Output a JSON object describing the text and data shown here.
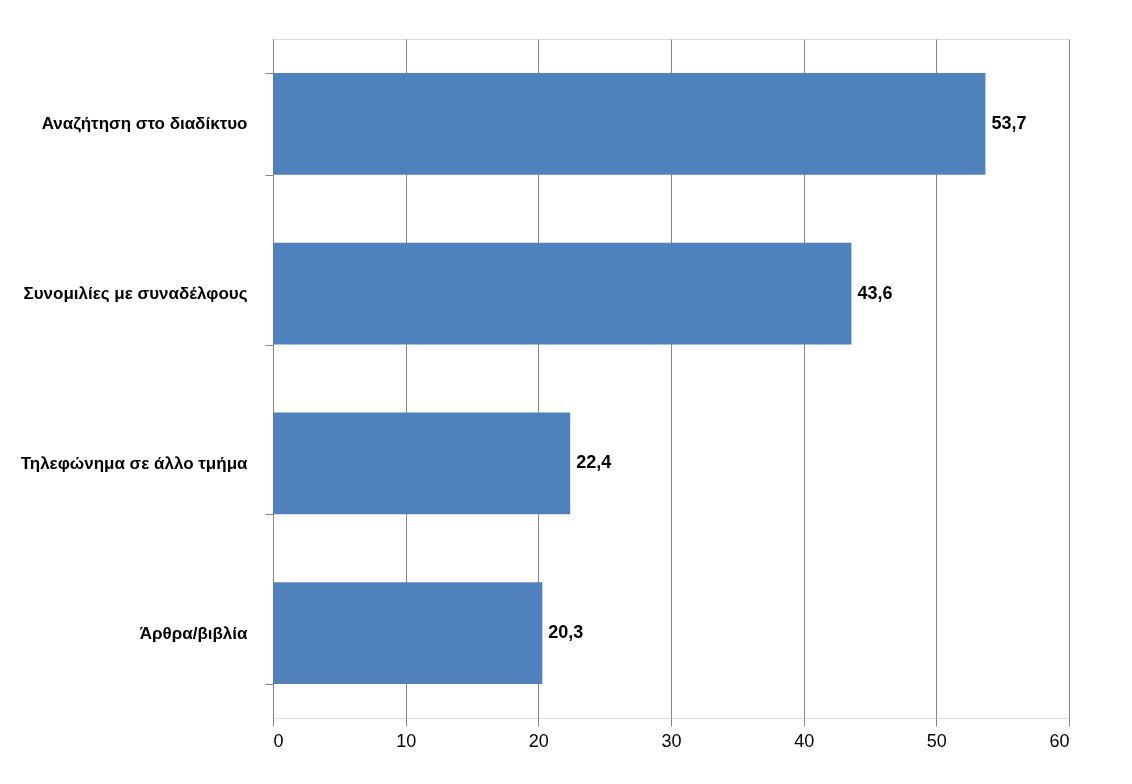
{
  "chart_data": {
    "type": "bar",
    "orientation": "horizontal",
    "categories": [
      "Αναζήτηση στο διαδίκτυο",
      "Συνομιλίες με συναδέλφους",
      "Τηλεφώνημα σε άλλο τμήμα",
      "Άρθρα/βιβλία"
    ],
    "values": [
      53.7,
      43.6,
      22.4,
      20.3
    ],
    "value_labels": [
      "53,7",
      "43,6",
      "22,4",
      "20,3"
    ],
    "color": "#4f81bd",
    "xlim": [
      0,
      60
    ],
    "xticks": [
      0,
      10,
      20,
      30,
      40,
      50,
      60
    ],
    "grid": "x"
  }
}
